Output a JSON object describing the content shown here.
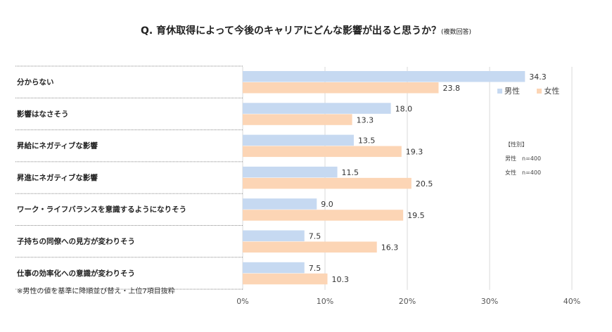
{
  "chart_data": {
    "type": "bar",
    "orientation": "horizontal",
    "title": "Q. 育休取得によって今後のキャリアにどんな影響が出ると思うか？",
    "subtitle": "(複数回答)",
    "categories": [
      "分からない",
      "影響はなさそう",
      "昇給にネガティブな影響",
      "昇進にネガティブな影響",
      "ワーク・ライフバランスを意識するようになりそう",
      "子持ちの同僚への見方が変わりそう",
      "仕事の効率化への意識が変わりそう"
    ],
    "series": [
      {
        "name": "男性",
        "color": "#c6d9f1",
        "values": [
          34.3,
          18.0,
          13.5,
          11.5,
          9.0,
          7.5,
          7.5
        ]
      },
      {
        "name": "女性",
        "color": "#fcd5b5",
        "values": [
          23.8,
          13.3,
          19.3,
          20.5,
          19.5,
          16.3,
          10.3
        ]
      }
    ],
    "xlim": [
      0,
      40
    ],
    "xticks": [
      "0%",
      "10%",
      "20%",
      "30%",
      "40%"
    ],
    "grid": true,
    "legend": "top-right",
    "footnote": "※男性の値を基準に降順並び替え・上位7項目抜粋",
    "sample_note": {
      "heading": "【性別】",
      "lines": [
        "男性　n=400",
        "女性　n=400"
      ]
    }
  }
}
